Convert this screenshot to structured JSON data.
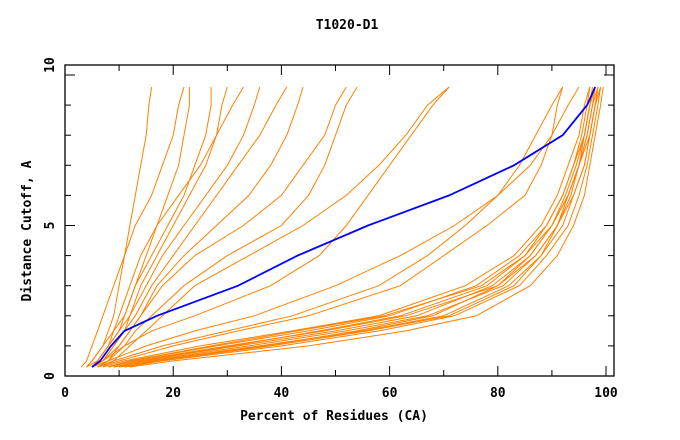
{
  "chart_data": {
    "type": "line",
    "title": "T1020-D1",
    "xlabel": "Percent of Residues (CA)",
    "ylabel": "Distance Cutoff, A",
    "xlim": [
      0,
      101.7
    ],
    "ylim": [
      0,
      10.3
    ],
    "xticks": [
      0,
      20,
      40,
      60,
      80,
      100
    ],
    "yticks": [
      0,
      5,
      10
    ],
    "grid": false,
    "colors": {
      "models": "#ff8000",
      "highlight": "#0000ff",
      "axes": "#000000"
    },
    "y_levels": [
      0.3,
      0.5,
      1,
      1.5,
      2,
      3,
      4,
      5,
      6,
      7,
      8,
      9,
      9.6
    ],
    "series": [
      {
        "x": [
          8,
          12,
          28,
          45,
          60,
          76,
          84,
          89,
          92,
          94,
          96,
          97,
          98
        ]
      },
      {
        "x": [
          9,
          14,
          32,
          50,
          65,
          79,
          86,
          90,
          93,
          95,
          97,
          98,
          99
        ]
      },
      {
        "x": [
          10,
          16,
          36,
          55,
          70,
          82,
          88,
          92,
          94,
          96,
          97,
          98,
          99
        ]
      },
      {
        "x": [
          8,
          13,
          30,
          48,
          63,
          80,
          87,
          91,
          94,
          96,
          97,
          98,
          98.5
        ]
      },
      {
        "x": [
          11,
          18,
          40,
          58,
          72,
          84,
          89,
          93,
          95,
          96.5,
          97.5,
          98.5,
          99
        ]
      },
      {
        "x": [
          9,
          15,
          34,
          52,
          67,
          81,
          87,
          91,
          93,
          95,
          96,
          97,
          97.5
        ]
      },
      {
        "x": [
          7,
          11,
          25,
          42,
          58,
          74,
          83,
          88,
          91,
          93,
          95,
          96,
          97
        ]
      },
      {
        "x": [
          12,
          20,
          45,
          63,
          76,
          86,
          91,
          94,
          96,
          97,
          98,
          99,
          99.5
        ]
      },
      {
        "x": [
          10,
          17,
          38,
          56,
          71,
          83,
          88,
          91,
          93.5,
          95,
          96.5,
          97.5,
          98
        ]
      },
      {
        "x": [
          8,
          12,
          27,
          43,
          59,
          77,
          85,
          90,
          93,
          95,
          96.5,
          97.5,
          98.5
        ]
      },
      {
        "x": [
          9,
          14,
          31,
          47,
          62,
          78,
          85,
          89,
          92,
          94,
          95.5,
          96.5,
          97
        ]
      },
      {
        "x": [
          11,
          17,
          37,
          54,
          68,
          80,
          86,
          90,
          92.5,
          94.5,
          96,
          97,
          98
        ]
      },
      {
        "x": [
          6,
          9,
          18,
          30,
          42,
          58,
          67,
          74,
          80,
          84,
          87,
          90,
          92
        ]
      },
      {
        "x": [
          5,
          8,
          15,
          24,
          35,
          50,
          62,
          72,
          80,
          86,
          90,
          93,
          95
        ]
      },
      {
        "x": [
          6,
          10,
          20,
          32,
          45,
          62,
          70,
          78,
          85,
          88,
          90,
          91,
          92
        ]
      },
      {
        "x": [
          5,
          7,
          11,
          16,
          24,
          38,
          47,
          52,
          56,
          60,
          64,
          68,
          71
        ]
      },
      {
        "x": [
          4,
          5,
          7,
          8,
          9,
          10,
          11,
          12,
          13,
          14,
          15,
          15.5,
          16
        ]
      },
      {
        "x": [
          4,
          6,
          8,
          10,
          11,
          13,
          15,
          17,
          19,
          21,
          22,
          23,
          23
        ]
      },
      {
        "x": [
          5,
          6,
          8,
          10,
          12,
          14,
          17,
          20,
          23,
          26,
          28,
          29,
          30
        ]
      },
      {
        "x": [
          4,
          5,
          7,
          9,
          10,
          12,
          14,
          17,
          21,
          25,
          28,
          31,
          33
        ]
      },
      {
        "x": [
          5,
          7,
          9,
          11,
          13,
          16,
          20,
          24,
          28,
          32,
          36,
          39,
          41
        ]
      },
      {
        "x": [
          6,
          8,
          10,
          12,
          14,
          17,
          22,
          28,
          34,
          38,
          41,
          43,
          44
        ]
      },
      {
        "x": [
          6,
          8,
          11,
          13,
          16,
          22,
          30,
          40,
          45,
          48,
          50,
          52,
          54
        ]
      },
      {
        "x": [
          5,
          7,
          10,
          12,
          14,
          18,
          24,
          33,
          40,
          44,
          48,
          50,
          52
        ]
      },
      {
        "x": [
          7,
          9,
          12,
          15,
          18,
          24,
          34,
          44,
          52,
          58,
          63,
          67,
          71
        ]
      },
      {
        "x": [
          3,
          4,
          5,
          6,
          7,
          9,
          11,
          13,
          16,
          18,
          20,
          21,
          22
        ]
      },
      {
        "x": [
          4,
          6,
          8,
          9,
          11,
          13,
          16,
          19,
          22,
          24,
          26,
          27,
          27
        ]
      },
      {
        "x": [
          5,
          7,
          9,
          11,
          12,
          15,
          18,
          22,
          26,
          30,
          33,
          35,
          36
        ]
      }
    ],
    "highlight": {
      "x": [
        5,
        6.5,
        8.5,
        11,
        17,
        32,
        43,
        56,
        71,
        83,
        92,
        96.5,
        98
      ]
    }
  }
}
